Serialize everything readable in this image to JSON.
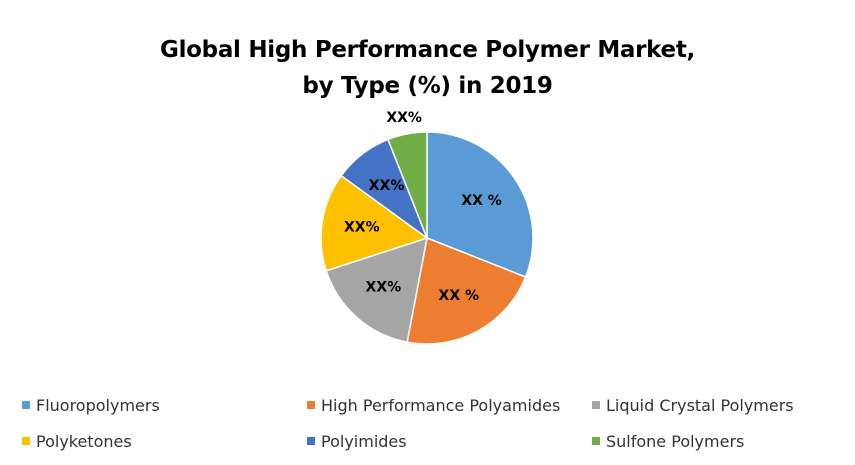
{
  "chart_data": {
    "type": "pie",
    "title": [
      "Global High Performance Polymer Market,",
      "by Type (%) in 2019"
    ],
    "slices": [
      {
        "name": "Fluoropolymers",
        "value": 31,
        "label": "XX %",
        "color": "#5B9BD5"
      },
      {
        "name": "High Performance Polyamides",
        "value": 22,
        "label": "XX %",
        "color": "#ED7D31"
      },
      {
        "name": "Liquid Crystal Polymers",
        "value": 17,
        "label": "XX%",
        "color": "#A5A5A5"
      },
      {
        "name": "Polyketones",
        "value": 15,
        "label": "XX%",
        "color": "#FFC000"
      },
      {
        "name": "Polyimides",
        "value": 9,
        "label": "XX%",
        "color": "#4472C4"
      },
      {
        "name": "Sulfone Polymers",
        "value": 6,
        "label": "XX%",
        "color": "#70AD47"
      }
    ],
    "legend_position": "bottom"
  }
}
